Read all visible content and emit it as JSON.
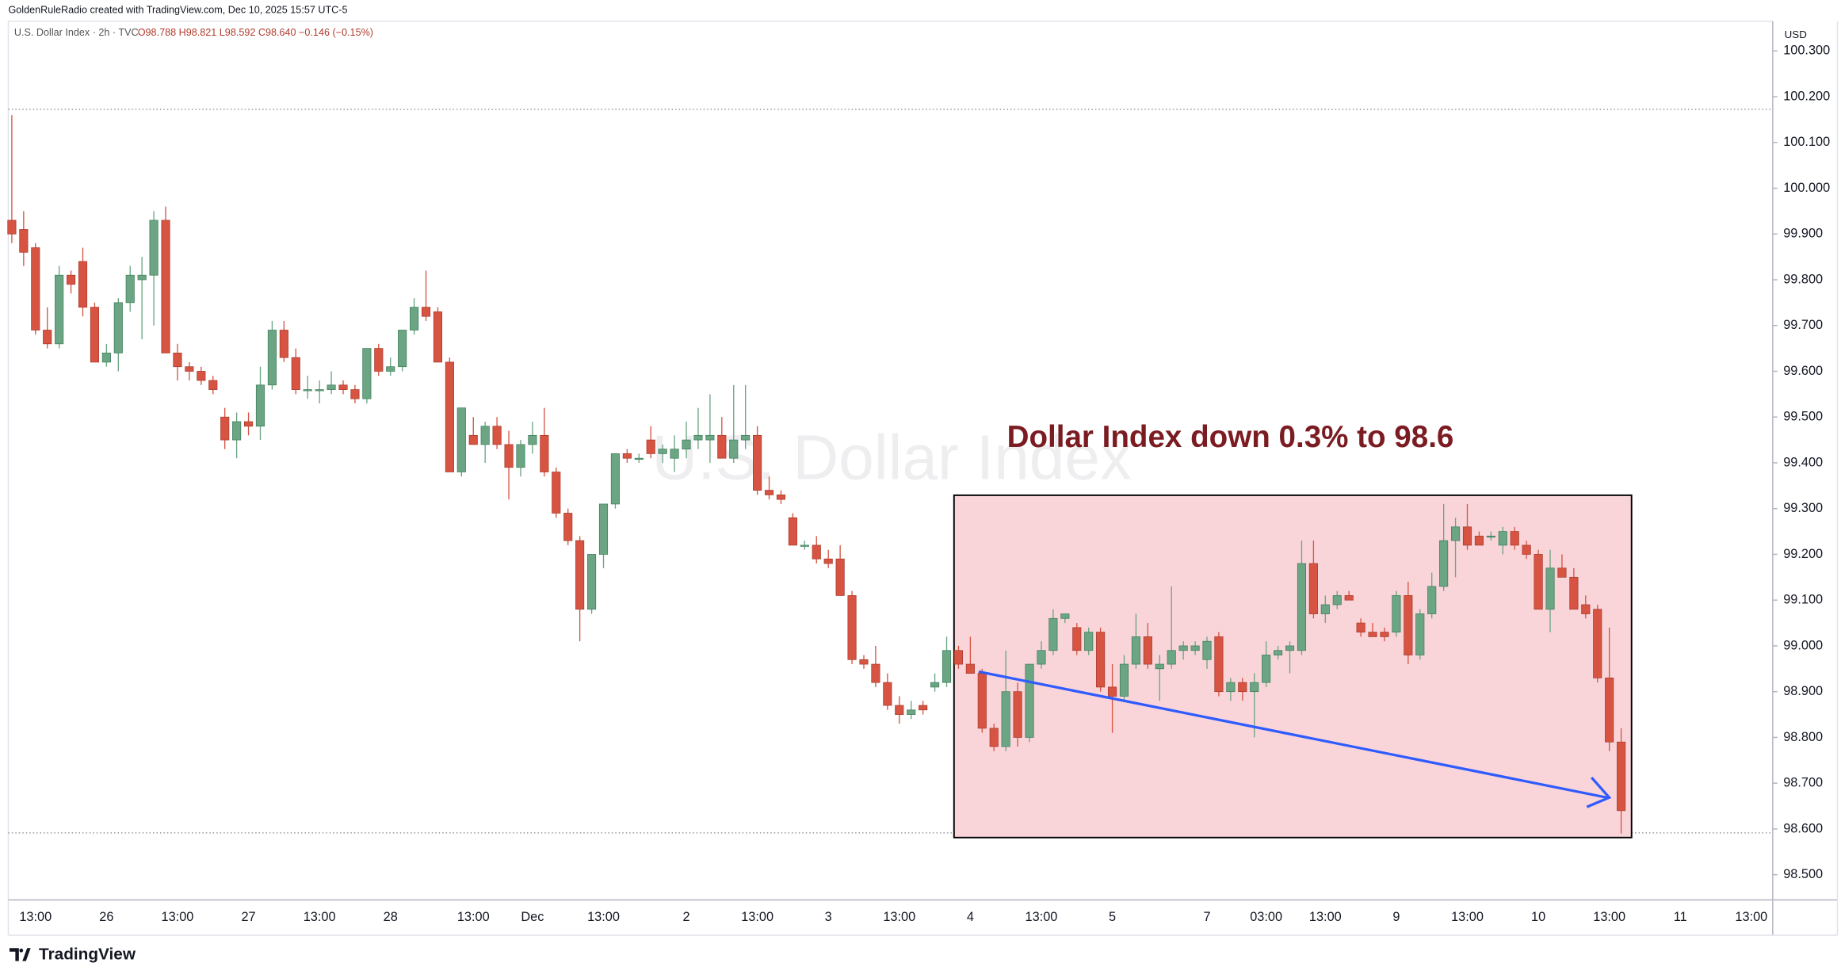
{
  "header": {
    "credit": "GoldenRuleRadio created with TradingView.com, Dec 10, 2025 15:57 UTC-5"
  },
  "legend": {
    "symbol": "U.S. Dollar Index · 2h · TVC",
    "values": "O98.788 H98.821 L98.592 C98.640 −0.146 (−0.15%)"
  },
  "footer": {
    "brand": "TradingView"
  },
  "chart_data": {
    "type": "candlestick",
    "watermark": "U.S. Dollar Index",
    "annotation": "Dollar Index down 0.3% to 98.6",
    "currency": "USD",
    "up_color": "#6ba583",
    "down_color": "#d75442",
    "grid": false,
    "ylim": [
      98.445,
      100.365
    ],
    "yticks": [
      {
        "value": 98.5,
        "label": "98.500"
      },
      {
        "value": 98.6,
        "label": "98.600"
      },
      {
        "value": 98.7,
        "label": "98.700"
      },
      {
        "value": 98.8,
        "label": "98.800"
      },
      {
        "value": 98.9,
        "label": "98.900"
      },
      {
        "value": 99.0,
        "label": "99.000"
      },
      {
        "value": 99.1,
        "label": "99.100"
      },
      {
        "value": 99.2,
        "label": "99.200"
      },
      {
        "value": 99.3,
        "label": "99.300"
      },
      {
        "value": 99.4,
        "label": "99.400"
      },
      {
        "value": 99.5,
        "label": "99.500"
      },
      {
        "value": 99.6,
        "label": "99.600"
      },
      {
        "value": 99.7,
        "label": "99.700"
      },
      {
        "value": 99.8,
        "label": "99.800"
      },
      {
        "value": 99.9,
        "label": "99.900"
      },
      {
        "value": 100.0,
        "label": "100.000"
      },
      {
        "value": 100.1,
        "label": "100.100"
      },
      {
        "value": 100.2,
        "label": "100.200"
      },
      {
        "value": 100.3,
        "label": "100.300"
      }
    ],
    "categories": [
      null,
      null,
      "13:00",
      null,
      null,
      null,
      null,
      null,
      "26",
      null,
      null,
      null,
      null,
      null,
      "13:00",
      null,
      null,
      null,
      null,
      null,
      "27",
      null,
      null,
      null,
      null,
      null,
      "13:00",
      null,
      null,
      null,
      null,
      null,
      "28",
      null,
      null,
      null,
      null,
      null,
      null,
      "13:00",
      null,
      null,
      null,
      null,
      "Dec",
      null,
      null,
      null,
      null,
      null,
      "13:00",
      null,
      null,
      null,
      null,
      null,
      null,
      "2",
      null,
      null,
      null,
      null,
      null,
      "13:00",
      null,
      null,
      null,
      null,
      null,
      "3",
      null,
      null,
      null,
      null,
      null,
      "13:00",
      null,
      null,
      null,
      null,
      null,
      "4",
      null,
      null,
      null,
      null,
      null,
      "13:00",
      null,
      null,
      null,
      null,
      null,
      "5",
      null,
      null,
      null,
      null,
      null,
      null,
      null,
      "7",
      null,
      null,
      null,
      null,
      "03:00",
      null,
      null,
      null,
      null,
      "13:00",
      null,
      null,
      null,
      null,
      null,
      "9",
      null,
      null,
      null,
      null,
      null,
      "13:00",
      null,
      null,
      null,
      null,
      null,
      "10",
      null,
      null,
      null,
      null,
      null,
      "13:00",
      null,
      null,
      null,
      null,
      null,
      "11",
      null,
      null,
      null,
      null,
      null,
      "13:00",
      null
    ],
    "ohlc": [
      [
        99.93,
        100.16,
        99.88,
        99.9
      ],
      [
        99.91,
        99.95,
        99.83,
        99.86
      ],
      [
        99.87,
        99.88,
        99.68,
        99.69
      ],
      [
        99.69,
        99.74,
        99.65,
        99.66
      ],
      [
        99.66,
        99.83,
        99.65,
        99.81
      ],
      [
        99.81,
        99.82,
        99.77,
        99.79
      ],
      [
        99.84,
        99.87,
        99.72,
        99.74
      ],
      [
        99.74,
        99.75,
        99.62,
        99.62
      ],
      [
        99.62,
        99.66,
        99.61,
        99.64
      ],
      [
        99.64,
        99.76,
        99.6,
        99.75
      ],
      [
        99.75,
        99.83,
        99.73,
        99.81
      ],
      [
        99.8,
        99.85,
        99.67,
        99.81
      ],
      [
        99.81,
        99.95,
        99.7,
        99.93
      ],
      [
        99.93,
        99.96,
        99.64,
        99.64
      ],
      [
        99.64,
        99.66,
        99.58,
        99.61
      ],
      [
        99.61,
        99.62,
        99.58,
        99.6
      ],
      [
        99.6,
        99.61,
        99.57,
        99.58
      ],
      [
        99.58,
        99.59,
        99.55,
        99.56
      ],
      [
        99.5,
        99.52,
        99.43,
        99.45
      ],
      [
        99.45,
        99.51,
        99.41,
        99.49
      ],
      [
        99.49,
        99.51,
        99.46,
        99.48
      ],
      [
        99.48,
        99.61,
        99.45,
        99.57
      ],
      [
        99.57,
        99.71,
        99.56,
        99.69
      ],
      [
        99.69,
        99.71,
        99.62,
        99.63
      ],
      [
        99.63,
        99.65,
        99.55,
        99.56
      ],
      [
        99.56,
        99.59,
        99.54,
        99.56
      ],
      [
        99.56,
        99.58,
        99.53,
        99.56
      ],
      [
        99.56,
        99.6,
        99.55,
        99.57
      ],
      [
        99.57,
        99.58,
        99.55,
        99.56
      ],
      [
        99.56,
        99.57,
        99.53,
        99.54
      ],
      [
        99.54,
        99.65,
        99.53,
        99.65
      ],
      [
        99.65,
        99.66,
        99.59,
        99.6
      ],
      [
        99.6,
        99.63,
        99.59,
        99.61
      ],
      [
        99.61,
        99.69,
        99.6,
        99.69
      ],
      [
        99.69,
        99.76,
        99.68,
        99.74
      ],
      [
        99.74,
        99.82,
        99.71,
        99.72
      ],
      [
        99.73,
        99.74,
        99.62,
        99.62
      ],
      [
        99.62,
        99.63,
        99.38,
        99.38
      ],
      [
        99.38,
        99.52,
        99.37,
        99.52
      ],
      [
        99.46,
        99.5,
        99.44,
        99.44
      ],
      [
        99.44,
        99.49,
        99.4,
        99.48
      ],
      [
        99.48,
        99.5,
        99.43,
        99.44
      ],
      [
        99.44,
        99.47,
        99.32,
        99.39
      ],
      [
        99.39,
        99.45,
        99.37,
        99.44
      ],
      [
        99.44,
        99.49,
        99.42,
        99.46
      ],
      [
        99.46,
        99.52,
        99.37,
        99.38
      ],
      [
        99.38,
        99.39,
        99.28,
        99.29
      ],
      [
        99.29,
        99.3,
        99.22,
        99.23
      ],
      [
        99.23,
        99.24,
        99.01,
        99.08
      ],
      [
        99.08,
        99.2,
        99.07,
        99.2
      ],
      [
        99.2,
        99.31,
        99.17,
        99.31
      ],
      [
        99.31,
        99.42,
        99.3,
        99.42
      ],
      [
        99.42,
        99.43,
        99.4,
        99.41
      ],
      [
        99.41,
        99.42,
        99.4,
        99.41
      ],
      [
        99.45,
        99.48,
        99.41,
        99.42
      ],
      [
        99.42,
        99.44,
        99.4,
        99.43
      ],
      [
        99.41,
        99.46,
        99.38,
        99.43
      ],
      [
        99.43,
        99.49,
        99.41,
        99.45
      ],
      [
        99.45,
        99.52,
        99.43,
        99.46
      ],
      [
        99.45,
        99.55,
        99.4,
        99.46
      ],
      [
        99.46,
        99.5,
        99.41,
        99.41
      ],
      [
        99.41,
        99.57,
        99.4,
        99.45
      ],
      [
        99.45,
        99.57,
        99.43,
        99.46
      ],
      [
        99.46,
        99.48,
        99.33,
        99.34
      ],
      [
        99.34,
        99.37,
        99.32,
        99.33
      ],
      [
        99.33,
        99.34,
        99.31,
        99.32
      ],
      [
        99.28,
        99.29,
        99.22,
        99.22
      ],
      [
        99.22,
        99.23,
        99.21,
        99.22
      ],
      [
        99.22,
        99.24,
        99.18,
        99.19
      ],
      [
        99.19,
        99.21,
        99.17,
        99.18
      ],
      [
        99.19,
        99.22,
        99.11,
        99.11
      ],
      [
        99.11,
        99.12,
        98.96,
        98.97
      ],
      [
        98.97,
        98.98,
        98.95,
        98.96
      ],
      [
        98.96,
        99.0,
        98.91,
        98.92
      ],
      [
        98.92,
        98.94,
        98.86,
        98.87
      ],
      [
        98.87,
        98.89,
        98.83,
        98.85
      ],
      [
        98.85,
        98.88,
        98.84,
        98.86
      ],
      [
        98.87,
        98.88,
        98.85,
        98.86
      ],
      [
        98.91,
        98.94,
        98.9,
        98.92
      ],
      [
        98.92,
        99.02,
        98.91,
        98.99
      ],
      [
        98.99,
        99.0,
        98.95,
        98.96
      ],
      [
        98.96,
        99.02,
        98.94,
        98.94
      ],
      [
        98.94,
        98.95,
        98.81,
        98.82
      ],
      [
        98.82,
        98.83,
        98.77,
        98.78
      ],
      [
        98.78,
        98.99,
        98.77,
        98.9
      ],
      [
        98.9,
        98.92,
        98.78,
        98.8
      ],
      [
        98.8,
        98.96,
        98.79,
        98.96
      ],
      [
        98.96,
        99.01,
        98.95,
        98.99
      ],
      [
        98.99,
        99.08,
        98.98,
        99.06
      ],
      [
        99.06,
        99.07,
        99.05,
        99.07
      ],
      [
        99.04,
        99.05,
        98.98,
        98.99
      ],
      [
        98.99,
        99.04,
        98.98,
        99.03
      ],
      [
        99.03,
        99.04,
        98.9,
        98.91
      ],
      [
        98.91,
        98.96,
        98.81,
        98.89
      ],
      [
        98.89,
        98.98,
        98.88,
        98.96
      ],
      [
        98.96,
        99.07,
        98.95,
        99.02
      ],
      [
        99.02,
        99.05,
        98.95,
        98.96
      ],
      [
        98.95,
        98.98,
        98.88,
        98.96
      ],
      [
        98.96,
        99.13,
        98.95,
        98.99
      ],
      [
        98.99,
        99.01,
        98.97,
        99.0
      ],
      [
        98.99,
        99.01,
        98.98,
        99.0
      ],
      [
        98.97,
        99.02,
        98.95,
        99.01
      ],
      [
        99.02,
        99.03,
        98.89,
        98.9
      ],
      [
        98.9,
        98.93,
        98.88,
        98.92
      ],
      [
        98.92,
        98.93,
        98.88,
        98.9
      ],
      [
        98.9,
        98.94,
        98.8,
        98.92
      ],
      [
        98.92,
        99.01,
        98.91,
        98.98
      ],
      [
        98.98,
        99.0,
        98.97,
        98.99
      ],
      [
        98.99,
        99.01,
        98.94,
        99.0
      ],
      [
        98.99,
        99.23,
        98.98,
        99.18
      ],
      [
        99.18,
        99.23,
        99.06,
        99.07
      ],
      [
        99.07,
        99.11,
        99.05,
        99.09
      ],
      [
        99.09,
        99.12,
        99.08,
        99.11
      ],
      [
        99.11,
        99.12,
        99.1,
        99.1
      ],
      [
        99.05,
        99.06,
        99.02,
        99.03
      ],
      [
        99.03,
        99.05,
        99.02,
        99.02
      ],
      [
        99.03,
        99.04,
        99.01,
        99.02
      ],
      [
        99.03,
        99.12,
        99.02,
        99.11
      ],
      [
        99.11,
        99.14,
        98.96,
        98.98
      ],
      [
        98.98,
        99.08,
        98.97,
        99.07
      ],
      [
        99.07,
        99.16,
        99.06,
        99.13
      ],
      [
        99.13,
        99.31,
        99.12,
        99.23
      ],
      [
        99.23,
        99.28,
        99.15,
        99.26
      ],
      [
        99.26,
        99.31,
        99.21,
        99.22
      ],
      [
        99.24,
        99.25,
        99.22,
        99.22
      ],
      [
        99.24,
        99.25,
        99.23,
        99.24
      ],
      [
        99.22,
        99.26,
        99.2,
        99.25
      ],
      [
        99.25,
        99.26,
        99.21,
        99.22
      ],
      [
        99.22,
        99.23,
        99.19,
        99.2
      ],
      [
        99.2,
        99.21,
        99.08,
        99.08
      ],
      [
        99.08,
        99.21,
        99.03,
        99.17
      ],
      [
        99.17,
        99.2,
        99.15,
        99.15
      ],
      [
        99.15,
        99.17,
        99.08,
        99.08
      ],
      [
        99.09,
        99.11,
        99.06,
        99.07
      ],
      [
        99.08,
        99.09,
        98.92,
        98.93
      ],
      [
        98.93,
        99.04,
        98.77,
        98.79
      ],
      [
        98.79,
        98.82,
        98.59,
        98.64
      ],
      null,
      null,
      null,
      null,
      null,
      null,
      null,
      null,
      null,
      null,
      null,
      null
    ]
  }
}
